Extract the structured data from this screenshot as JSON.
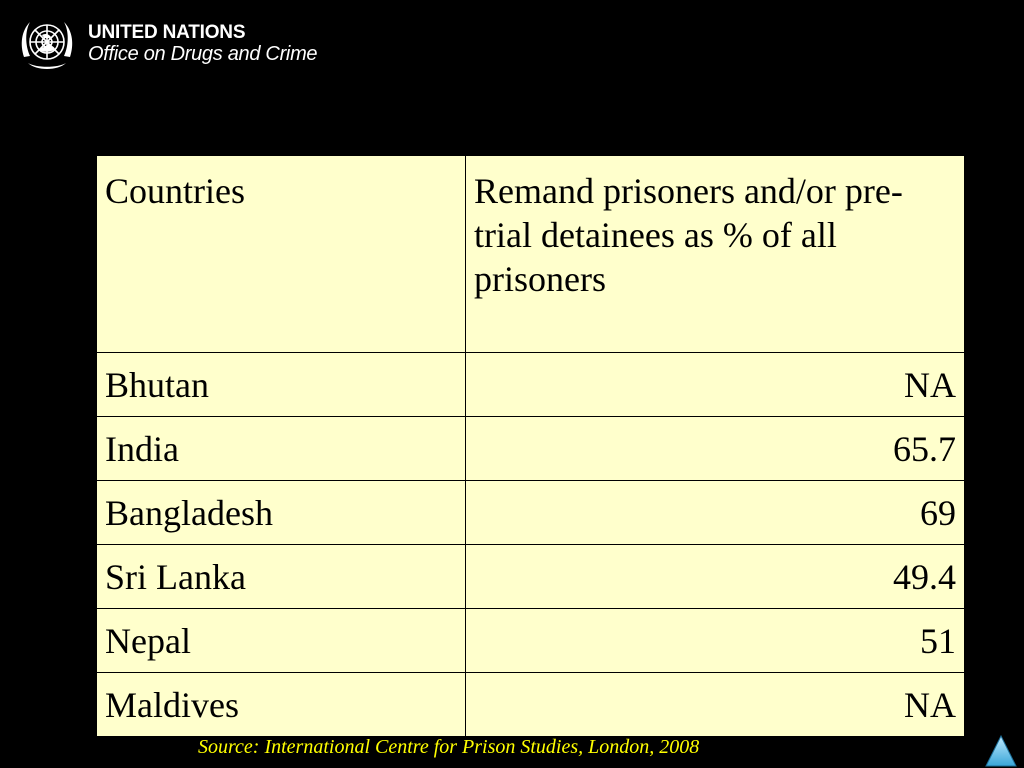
{
  "logo": {
    "line1": "UNITED NATIONS",
    "line2": "Office on Drugs and Crime",
    "icon": "un-emblem-icon"
  },
  "table": {
    "headers": [
      "Countries",
      "Remand prisoners and/or pre-trial detainees as % of all prisoners"
    ],
    "rows": [
      {
        "country": "Bhutan",
        "value": "NA"
      },
      {
        "country": "India",
        "value": "65.7"
      },
      {
        "country": "Bangladesh",
        "value": "69"
      },
      {
        "country": "Sri Lanka",
        "value": "49.4"
      },
      {
        "country": "Nepal",
        "value": "51"
      },
      {
        "country": "Maldives",
        "value": "NA"
      }
    ]
  },
  "source": "Source: International Centre for Prison Studies, London, 2008",
  "nav": {
    "icon": "triangle-up-icon"
  },
  "colors": {
    "background": "#000000",
    "table_fill": "#ffffcc",
    "source_text": "#ffff00",
    "nav_button": "#6fc8f0"
  }
}
